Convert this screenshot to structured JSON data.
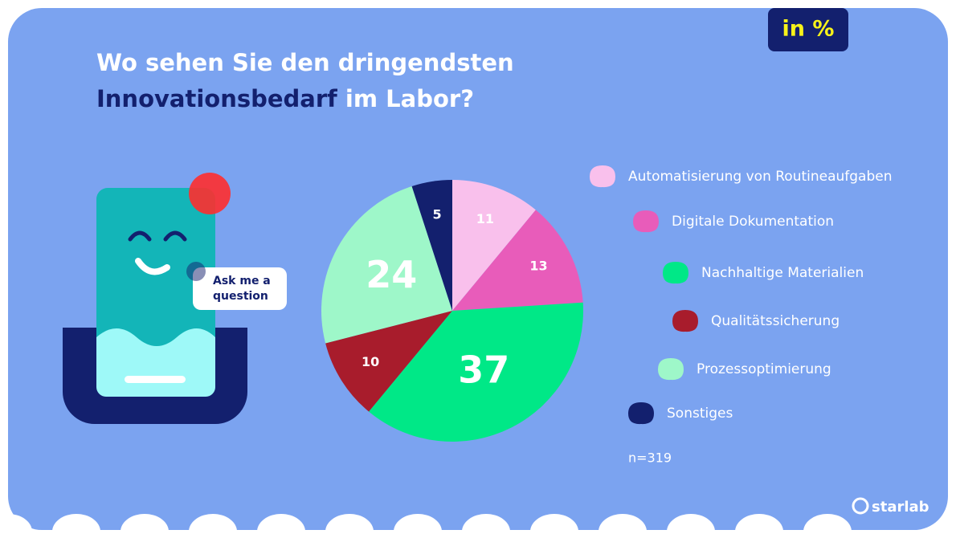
{
  "chart_data": {
    "type": "pie",
    "title": {
      "line1": "Wo sehen Sie den dringendsten",
      "highlight": "Innovationsbedarf",
      "line2_rest": "im Labor?"
    },
    "unit_badge": "in %",
    "categories": [
      "Automatisierung von Routineaufgaben",
      "Digitale Dokumentation",
      "Nachhaltige Materialien",
      "Qualitätssicherung",
      "Prozessoptimierung",
      "Sonstiges"
    ],
    "values": [
      11,
      13,
      37,
      10,
      24,
      5
    ],
    "colors": [
      "#f9c0ec",
      "#e85cba",
      "#00e887",
      "#a81c2c",
      "#9ef7c9",
      "#13206e"
    ],
    "note": "n=319",
    "mascot_bubble": [
      "Ask me a",
      "question"
    ],
    "brand": "starlab"
  }
}
